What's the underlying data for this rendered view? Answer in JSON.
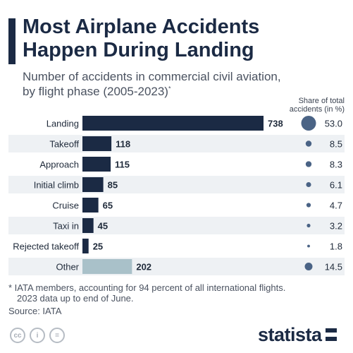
{
  "header": {
    "title_line1": "Most Airplane Accidents",
    "title_line2": "Happen During Landing",
    "subtitle_line1": "Number of accidents in commercial civil aviation,",
    "subtitle_line2": "by flight phase (2005-2023)",
    "subtitle_mark": "*"
  },
  "share_header": {
    "line1": "Share of total",
    "line2": "accidents (in %)"
  },
  "colors": {
    "bar": "#1b2a44",
    "bar_other": "#a9c1c9",
    "row_band": "#eef1f4",
    "circle": "#4a6385",
    "text": "#1f2a3a"
  },
  "chart_data": {
    "type": "bar",
    "orientation": "horizontal",
    "title": "Most Airplane Accidents Happen During Landing",
    "subtitle": "Number of accidents in commercial civil aviation, by flight phase (2005-2023)*",
    "categories": [
      "Landing",
      "Takeoff",
      "Approach",
      "Initial climb",
      "Cruise",
      "Taxi in",
      "Rejected takeoff",
      "Other"
    ],
    "values": [
      738,
      118,
      115,
      85,
      65,
      45,
      25,
      202
    ],
    "shares": [
      "53.0",
      "8.5",
      "8.3",
      "6.1",
      "4.7",
      "3.2",
      "1.8",
      "14.5"
    ],
    "shares_label": "Share of total accidents (in %)",
    "xlim": [
      0,
      738
    ],
    "grid": false,
    "highlight_last": true
  },
  "footer": {
    "note_line1": "* IATA members, accounting for 94 percent of all international flights.",
    "note_line2": "2023 data up to end of June.",
    "source": "Source: IATA",
    "cc_icons": [
      "cc-icon",
      "attribution-icon",
      "no-derivatives-icon"
    ],
    "cc_glyphs": [
      "cc",
      "i",
      "="
    ],
    "logo": "statista"
  }
}
